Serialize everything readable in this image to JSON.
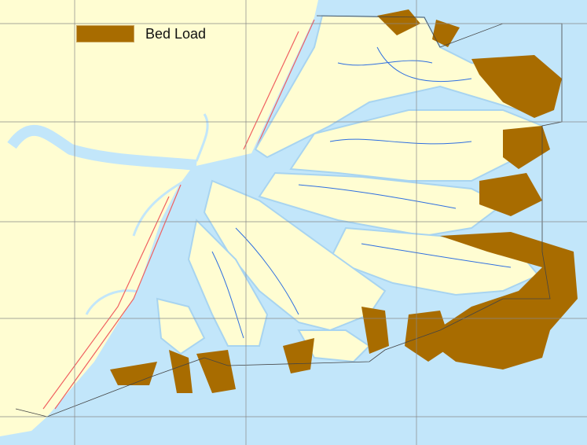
{
  "legend": {
    "items": [
      {
        "label": "Bed Load",
        "color": "#a86c00"
      }
    ]
  },
  "colors": {
    "water": "#c2e6fa",
    "land": "#fffdd2",
    "channels": "#2f6fe0",
    "roads": "#f05050",
    "bed_load": "#a86c00",
    "grid": "#888888"
  }
}
